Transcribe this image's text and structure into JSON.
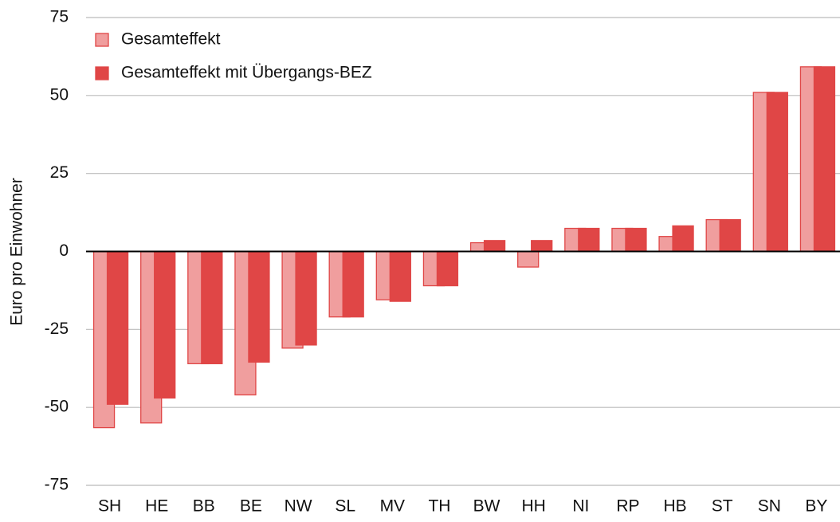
{
  "chart_data": {
    "type": "bar",
    "ylabel": "Euro pro Einwohner",
    "categories": [
      "SH",
      "HE",
      "BB",
      "BE",
      "NW",
      "SL",
      "MV",
      "TH",
      "BW",
      "HH",
      "NI",
      "RP",
      "HB",
      "ST",
      "SN",
      "BY"
    ],
    "series": [
      {
        "name": "Gesamteffekt",
        "color": "#f09e9e",
        "edge": "#e04646",
        "values": [
          -56.5,
          -55,
          -36,
          -46,
          -31,
          -21,
          -15.5,
          -11,
          2.8,
          -5,
          7.4,
          7.4,
          4.8,
          10.2,
          51,
          59.2
        ]
      },
      {
        "name": "Gesamteffekt mit Übergangs-BEZ",
        "color": "#e04646",
        "edge": "#e04646",
        "values": [
          -49,
          -47,
          -36,
          -35.5,
          -30,
          -21,
          -16,
          -11,
          3.5,
          3.5,
          7.4,
          7.4,
          8.2,
          10.2,
          51,
          59.2
        ]
      }
    ],
    "ylim": [
      -75,
      75
    ],
    "yticks": [
      -75,
      -50,
      -25,
      0,
      25,
      50,
      75
    ],
    "grid": true,
    "legend": "top-left"
  }
}
